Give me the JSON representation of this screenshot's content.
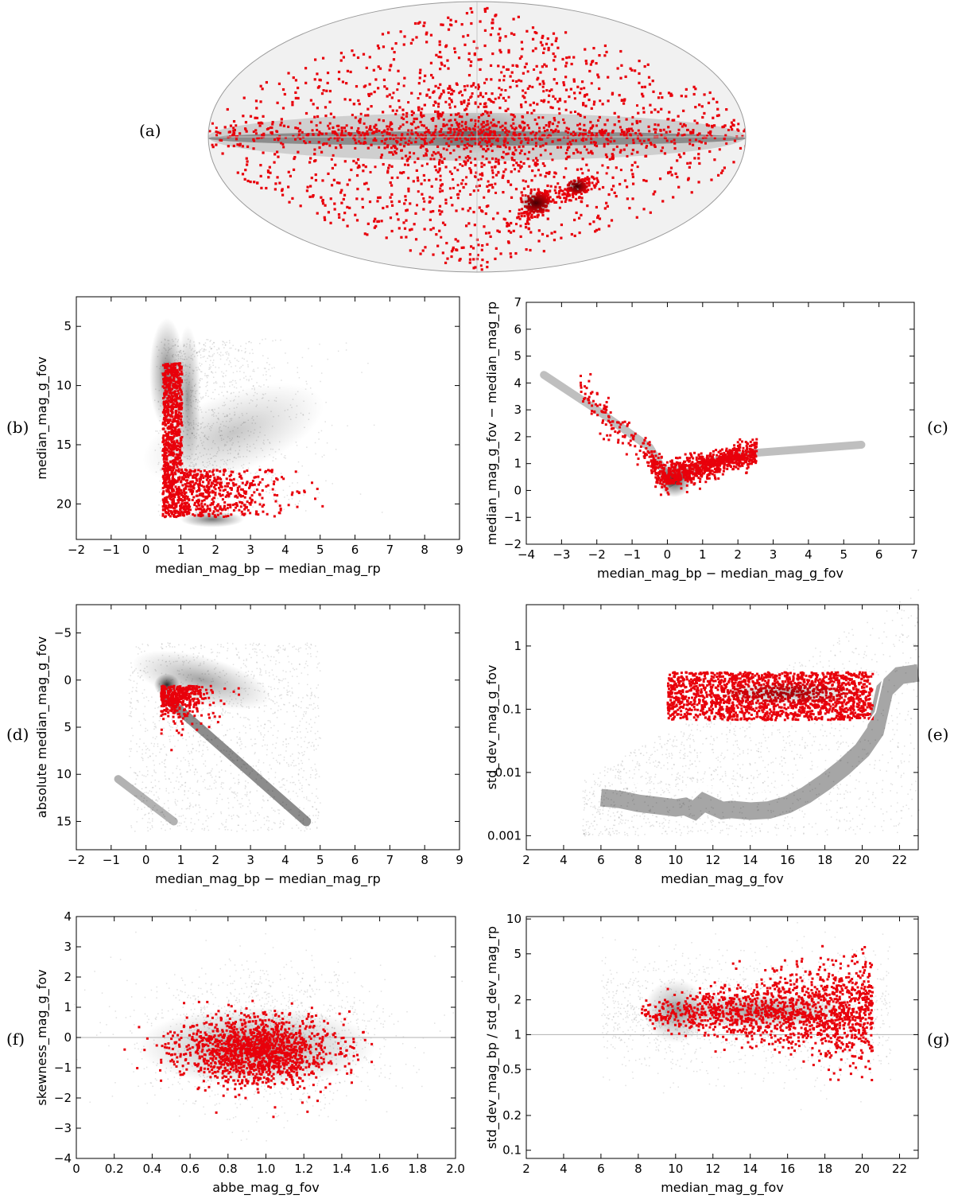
{
  "panel_labels": {
    "a": "(a)",
    "b": "(b)",
    "c": "(c)",
    "d": "(d)",
    "e": "(e)",
    "f": "(f)",
    "g": "(g)"
  },
  "colors": {
    "highlight": "#e8000b",
    "background_density": "#000000",
    "reference_line": "#b0b0b0",
    "median_curve": "#ffffff"
  },
  "chart_data": [
    {
      "id": "a",
      "type": "scatter",
      "projection": "all-sky (Mollweide-like ellipse)",
      "title": "",
      "xlabel": "",
      "ylabel": "",
      "series": [
        {
          "role": "background",
          "color": "#000000",
          "description_in_data": "density of all sources, concentrated along central band"
        },
        {
          "role": "highlight",
          "color": "#e8000b",
          "clusters": [
            {
              "lon": 0,
              "lat": 0,
              "spread": "wide"
            },
            {
              "lon": 0,
              "lat": 3,
              "spread": "band"
            },
            {
              "lon": -80,
              "lat": -33,
              "spread": "compact"
            },
            {
              "lon": -55,
              "lat": -44,
              "spread": "compact"
            }
          ]
        }
      ]
    },
    {
      "id": "b",
      "type": "scatter",
      "xlabel": "median_mag_bp − median_mag_rp",
      "ylabel": "median_mag_g_fov",
      "xlim": [
        -2,
        9
      ],
      "ylim": [
        23,
        2.5
      ],
      "y_inverted": true,
      "xticks": [
        -2,
        -1,
        0,
        1,
        2,
        3,
        4,
        5,
        6,
        7,
        8,
        9
      ],
      "yticks": [
        5,
        10,
        15,
        20
      ],
      "highlight_regions": [
        {
          "x": [
            0.4,
            1.0
          ],
          "y": [
            8,
            21
          ]
        },
        {
          "x": [
            1.0,
            4.0
          ],
          "y": [
            16,
            21
          ]
        }
      ]
    },
    {
      "id": "c",
      "type": "scatter",
      "xlabel": "median_mag_bp − median_mag_g_fov",
      "ylabel": "median_mag_g_fov − median_mag_rp",
      "xlim": [
        -4,
        7
      ],
      "ylim": [
        -2,
        7
      ],
      "xticks": [
        -4,
        -3,
        -2,
        -1,
        0,
        1,
        2,
        3,
        4,
        5,
        6,
        7
      ],
      "yticks": [
        -2,
        -1,
        0,
        1,
        2,
        3,
        4,
        5,
        6,
        7
      ],
      "background_ridge": [
        [
          -3.5,
          4.3
        ],
        [
          -2,
          3.0
        ],
        [
          -0.5,
          1.6
        ],
        [
          0.1,
          0.3
        ],
        [
          1,
          1.0
        ],
        [
          2.5,
          1.4
        ],
        [
          5.5,
          1.7
        ]
      ],
      "highlight_peak": {
        "x": 0.2,
        "y": 0.4
      }
    },
    {
      "id": "d",
      "type": "scatter",
      "xlabel": "median_mag_bp − median_mag_rp",
      "ylabel": "absolute median_mag_g_fov",
      "xlim": [
        -2,
        9
      ],
      "ylim": [
        18,
        -8
      ],
      "y_inverted": true,
      "xticks": [
        -2,
        -1,
        0,
        1,
        2,
        3,
        4,
        5,
        6,
        7,
        8,
        9
      ],
      "yticks": [
        -5,
        0,
        5,
        10,
        15
      ],
      "highlight_peak": {
        "x": 0.6,
        "y": 0.5
      }
    },
    {
      "id": "e",
      "type": "scatter",
      "xlabel": "median_mag_g_fov",
      "ylabel": "std_dev_mag_g_fov",
      "xscale": "linear",
      "yscale": "log",
      "xlim": [
        2,
        23
      ],
      "ylim": [
        0.0006,
        4.5
      ],
      "xticks": [
        2,
        4,
        6,
        8,
        10,
        12,
        14,
        16,
        18,
        20,
        22
      ],
      "yticks": [
        0.001,
        0.01,
        0.1,
        1
      ],
      "ytick_labels": [
        "0.001",
        "0.01",
        "0.1",
        "1"
      ],
      "median_curve": {
        "x": [
          6,
          7,
          8,
          9,
          10,
          10.5,
          11,
          11.5,
          12,
          12.5,
          13,
          14,
          15,
          16,
          17,
          18,
          19,
          20,
          20.7,
          21.2,
          22,
          23
        ],
        "y": [
          0.008,
          0.0075,
          0.0065,
          0.006,
          0.0055,
          0.0058,
          0.005,
          0.0068,
          0.0058,
          0.005,
          0.0052,
          0.0049,
          0.0051,
          0.0062,
          0.0088,
          0.014,
          0.024,
          0.045,
          0.09,
          0.4,
          0.68,
          0.75
        ]
      },
      "highlight_band": {
        "x": [
          9.5,
          20.5
        ],
        "y": [
          0.07,
          0.4
        ]
      }
    },
    {
      "id": "f",
      "type": "scatter",
      "xlabel": "abbe_mag_g_fov",
      "ylabel": "skewness_mag_g_fov",
      "xlim": [
        0,
        2
      ],
      "ylim": [
        -4,
        4
      ],
      "xticks": [
        0,
        0.2,
        0.4,
        0.6,
        0.8,
        1.0,
        1.2,
        1.4,
        1.6,
        1.8,
        2.0
      ],
      "xtick_labels": [
        "0",
        "0.2",
        "0.4",
        "0.6",
        "0.8",
        "1.0",
        "1.2",
        "1.4",
        "1.6",
        "1.8",
        "2.0"
      ],
      "yticks": [
        -4,
        -3,
        -2,
        -1,
        0,
        1,
        2,
        3,
        4
      ],
      "reference_line_y": 0,
      "highlight_peak": {
        "x": 0.95,
        "y": -0.4
      }
    },
    {
      "id": "g",
      "type": "scatter",
      "xlabel": "median_mag_g_fov",
      "ylabel": "std_dev_mag_bp / std_dev_mag_rp",
      "xscale": "linear",
      "yscale": "log",
      "xlim": [
        2,
        23
      ],
      "ylim": [
        0.085,
        10.5
      ],
      "xticks": [
        2,
        4,
        6,
        8,
        10,
        12,
        14,
        16,
        18,
        20,
        22
      ],
      "yticks": [
        0.1,
        0.2,
        0.5,
        1,
        2,
        5,
        10
      ],
      "ytick_labels": [
        "0.1",
        "0.2",
        "0.5",
        "1",
        "2",
        "5",
        "10"
      ],
      "reference_line_y": 1,
      "highlight_ridge": {
        "x": [
          8,
          20.5
        ],
        "y": 1.6
      }
    }
  ]
}
